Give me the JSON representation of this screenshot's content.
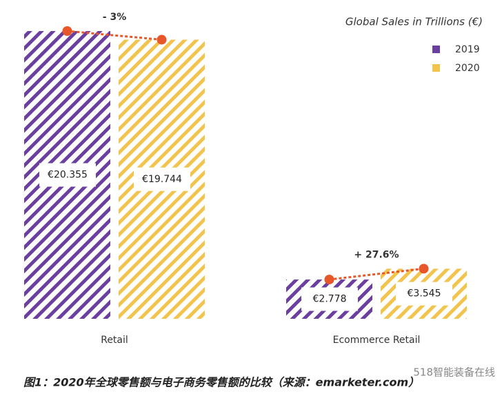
{
  "chart_data": {
    "type": "bar",
    "title": "Global Sales in Trillions (€)",
    "categories": [
      "Retail",
      "Ecommerce Retail"
    ],
    "series": [
      {
        "name": "2019",
        "color": "#6b3fa0",
        "values": [
          20.355,
          2.778
        ],
        "value_labels": [
          "€20.355",
          "€2.778"
        ]
      },
      {
        "name": "2020",
        "color": "#f2c44e",
        "values": [
          19.744,
          3.545
        ],
        "value_labels": [
          "€19.744",
          "€3.545"
        ]
      }
    ],
    "annotations": [
      "- 3%",
      "+ 27.6%"
    ],
    "annotation_color": "#e8572a",
    "legend": "top-right",
    "caption": "图1：2020年全球零售额与电子商务零售额的比较（来源：emarketer.com）",
    "watermark": "518智能装备在线"
  }
}
